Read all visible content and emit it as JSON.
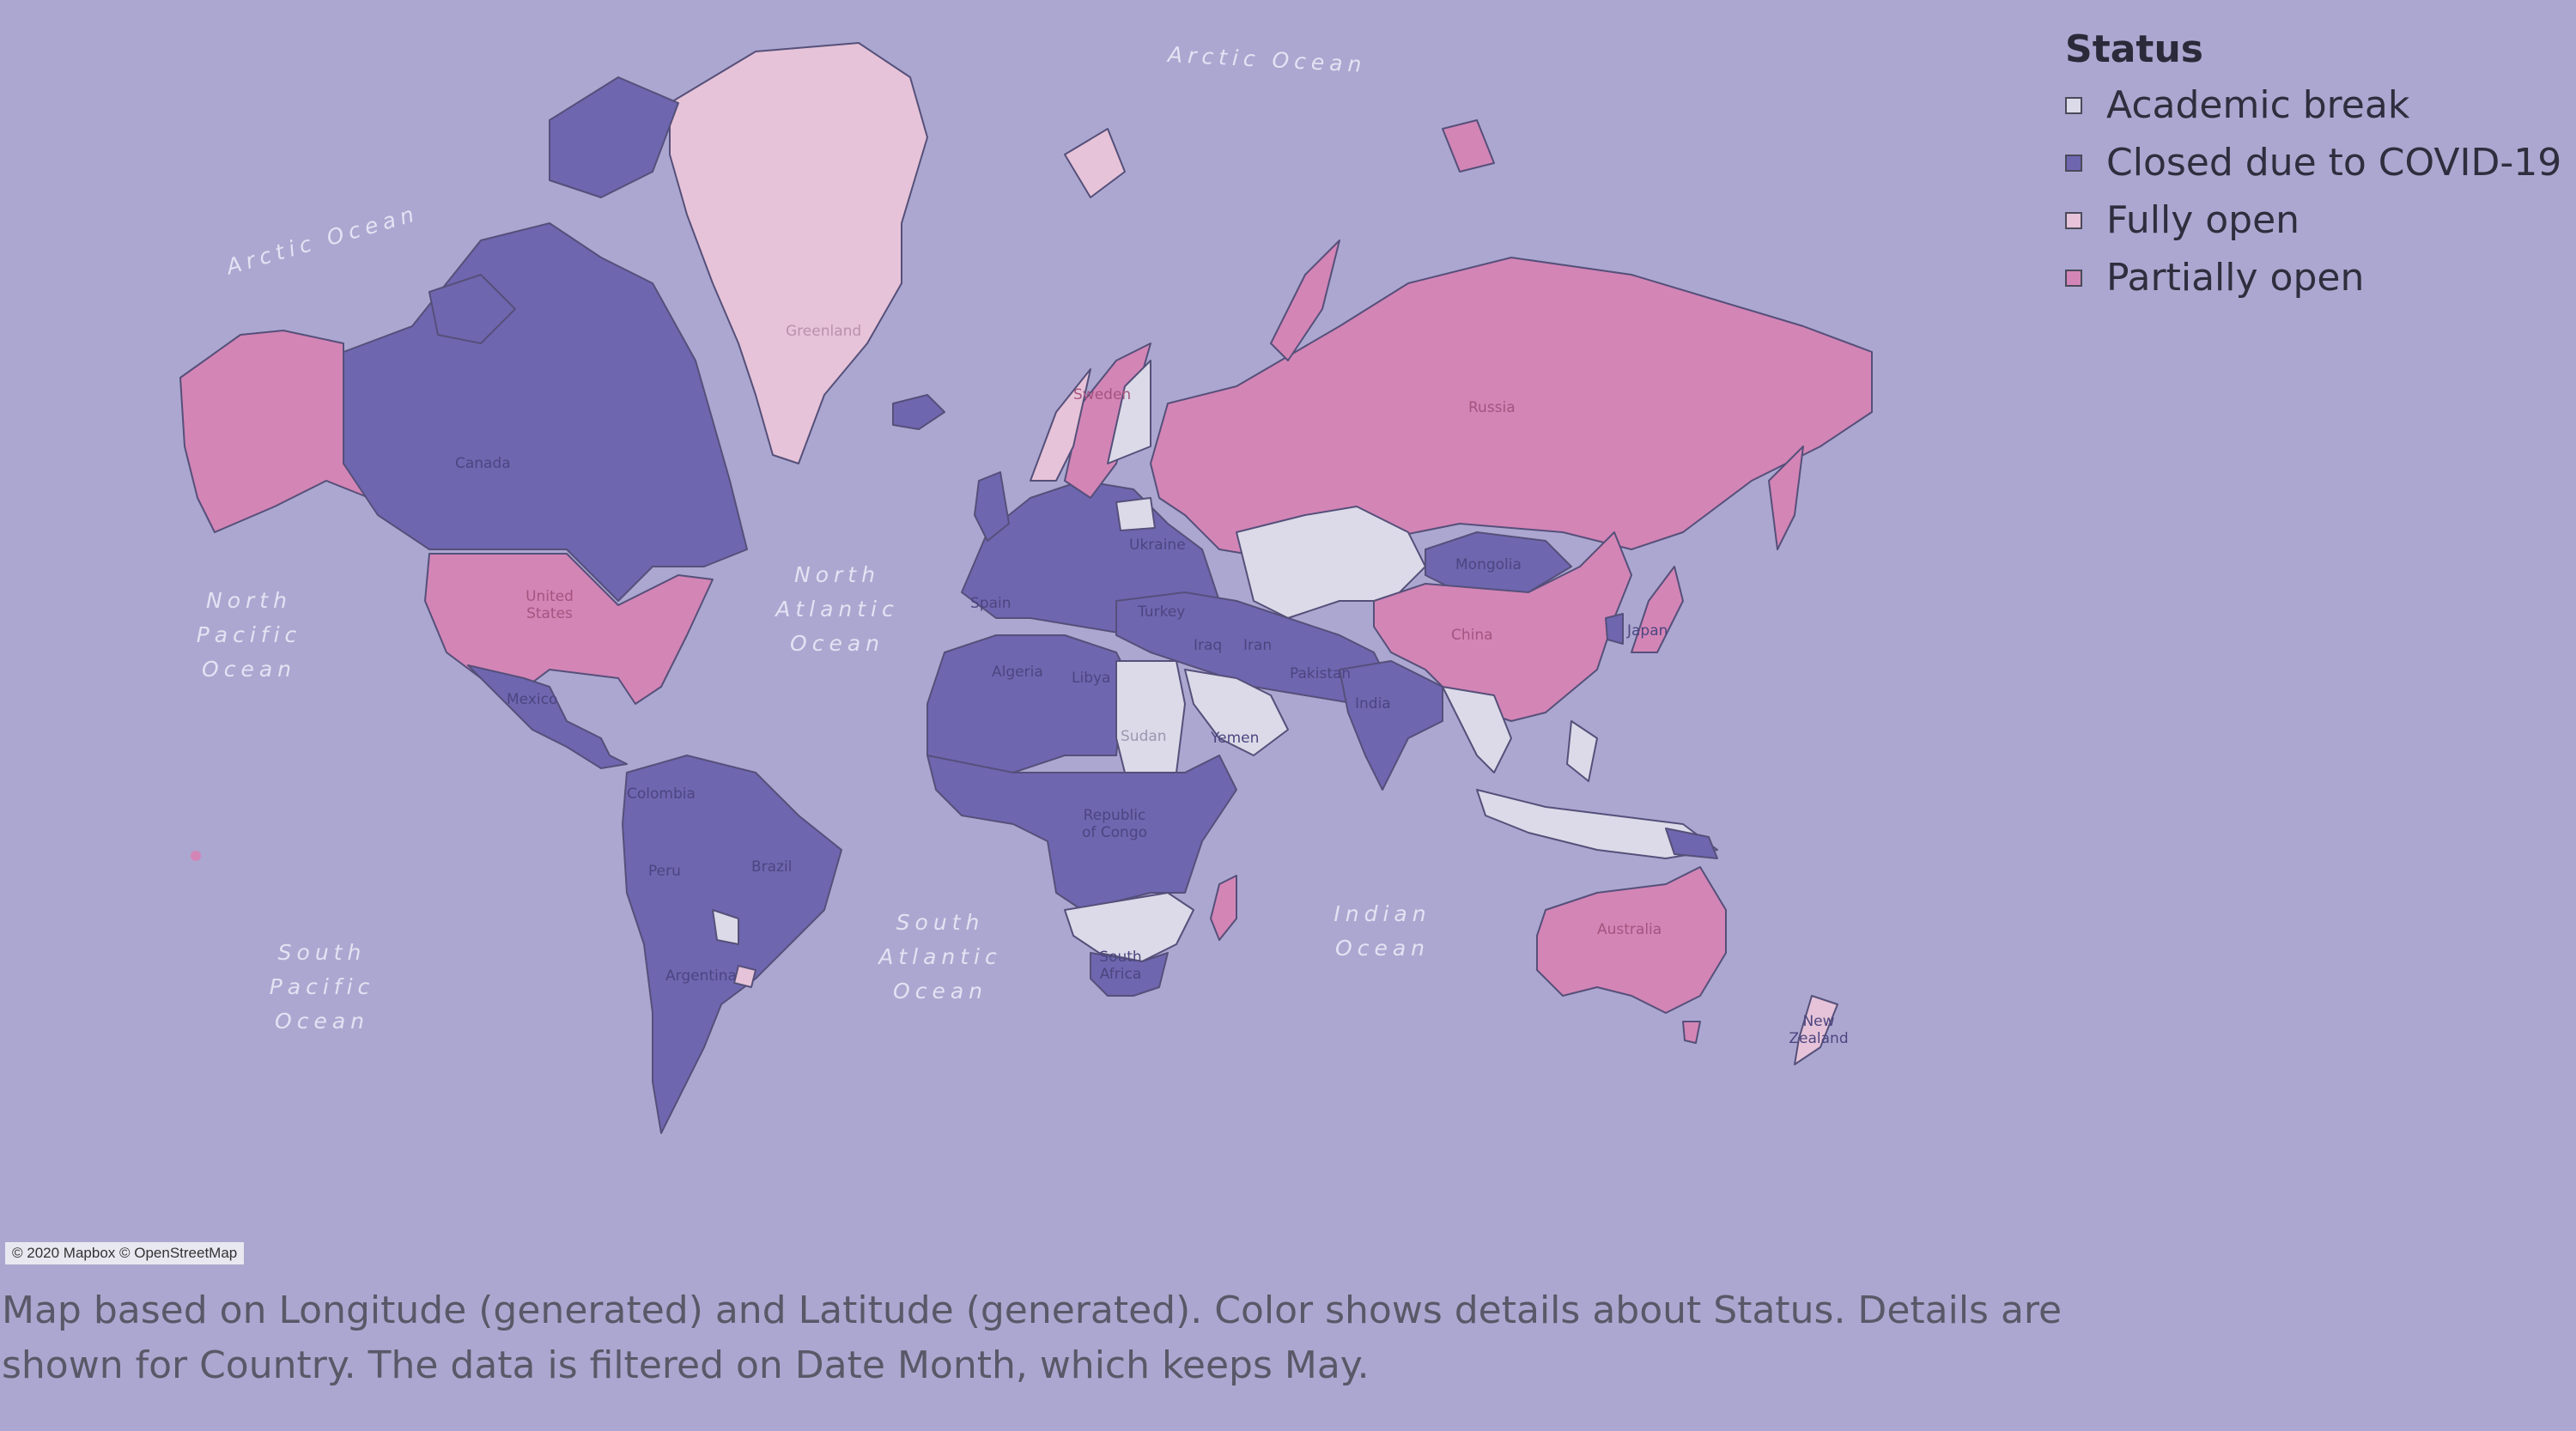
{
  "legend": {
    "title": "Status",
    "items": [
      {
        "label": "Academic break",
        "color": "#dcdae8"
      },
      {
        "label": "Closed due to COVID-19",
        "color": "#6f66b0"
      },
      {
        "label": "Fully open",
        "color": "#e6c3d8"
      },
      {
        "label": "Partially open",
        "color": "#d385b6"
      }
    ]
  },
  "oceans": [
    {
      "label": "Arctic Ocean"
    },
    {
      "label": "Arctic Ocean"
    },
    {
      "label": "North\nPacific\nOcean"
    },
    {
      "label": "North\nAtlantic\nOcean"
    },
    {
      "label": "South\nPacific\nOcean"
    },
    {
      "label": "South\nAtlantic\nOcean"
    },
    {
      "label": "Indian\nOcean"
    }
  ],
  "countries": [
    {
      "label": "Greenland",
      "status": "Fully open"
    },
    {
      "label": "Canada",
      "status": "Closed due to COVID-19"
    },
    {
      "label": "United States",
      "status": "Partially open"
    },
    {
      "label": "Mexico",
      "status": "Closed due to COVID-19"
    },
    {
      "label": "Colombia",
      "status": "Closed due to COVID-19"
    },
    {
      "label": "Brazil",
      "status": "Closed due to COVID-19"
    },
    {
      "label": "Peru",
      "status": "Closed due to COVID-19"
    },
    {
      "label": "Argentina",
      "status": "Closed due to COVID-19"
    },
    {
      "label": "Russia",
      "status": "Partially open"
    },
    {
      "label": "China",
      "status": "Partially open"
    },
    {
      "label": "Mongolia",
      "status": "Closed due to COVID-19"
    },
    {
      "label": "Ukraine",
      "status": "Closed due to COVID-19"
    },
    {
      "label": "Turkey",
      "status": "Closed due to COVID-19"
    },
    {
      "label": "Iran",
      "status": "Closed due to COVID-19"
    },
    {
      "label": "Iraq",
      "status": "Closed due to COVID-19"
    },
    {
      "label": "Pakistan",
      "status": "Closed due to COVID-19"
    },
    {
      "label": "India",
      "status": "Closed due to COVID-19"
    },
    {
      "label": "Algeria",
      "status": "Closed due to COVID-19"
    },
    {
      "label": "Libya",
      "status": "Closed due to COVID-19"
    },
    {
      "label": "Sudan",
      "status": "Academic break"
    },
    {
      "label": "Yemen",
      "status": "Closed due to COVID-19"
    },
    {
      "label": "Spain",
      "status": "Closed due to COVID-19"
    },
    {
      "label": "Sweden",
      "status": "Partially open"
    },
    {
      "label": "Republic of Congo",
      "status": "Closed due to COVID-19"
    },
    {
      "label": "South Africa",
      "status": "Closed due to COVID-19"
    },
    {
      "label": "Japan",
      "status": "Partially open"
    },
    {
      "label": "Australia",
      "status": "Partially open"
    },
    {
      "label": "New Zealand",
      "status": "Fully open"
    }
  ],
  "attribution": "© 2020 Mapbox © OpenStreetMap",
  "caption": "Map based on Longitude (generated) and Latitude (generated).  Color shows details about Status.  Details are shown for Country. The data is filtered on Date Month, which keeps May."
}
